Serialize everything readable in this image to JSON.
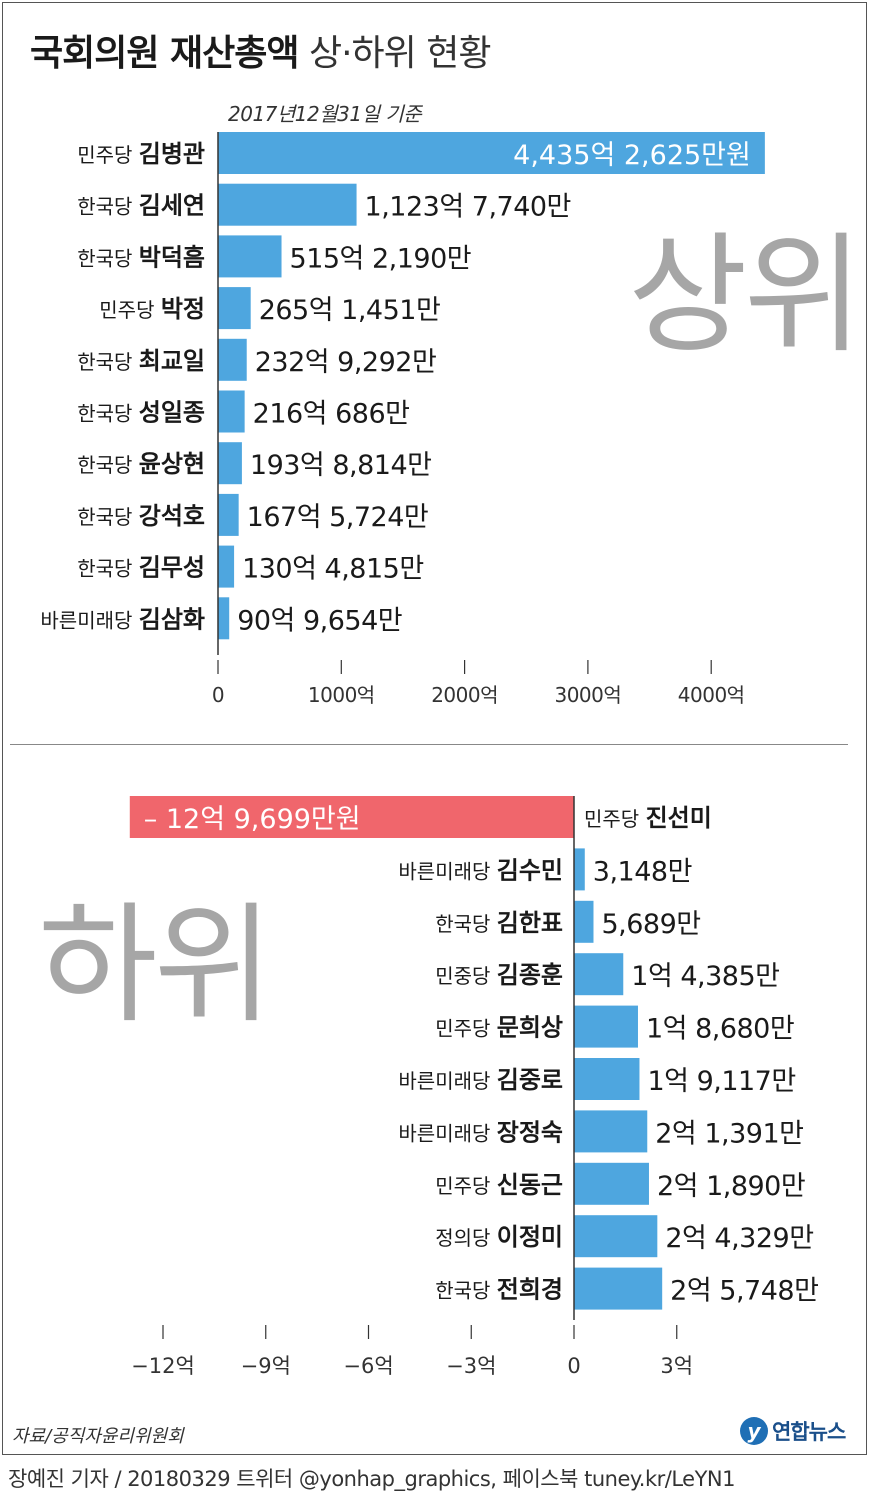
{
  "title": {
    "bold": "국회의원 재산총액",
    "rest": "상·하위 현황"
  },
  "subtitle": "2017년12월31일 기준",
  "labels": {
    "top_word": "상위",
    "bottom_word": "하위"
  },
  "source": "자료/공직자윤리위원회",
  "credit": "장예진 기자 / 20180329 트위터 @yonhap_graphics, 페이스북 tuney.kr/LeYN1",
  "logo": {
    "mark": "y",
    "text": "연합뉴스"
  },
  "colors": {
    "bar": "#4ea6df",
    "negative_bar": "#f0666c",
    "axis": "#333333",
    "big_word": "#a6a6a6"
  },
  "chart_data": [
    {
      "type": "bar",
      "orientation": "horizontal",
      "group": "상위",
      "unit": "억원",
      "xlim": [
        0,
        4435
      ],
      "xticks": [
        0,
        1000,
        2000,
        3000,
        4000
      ],
      "xtick_labels": [
        "0",
        "1000억",
        "2000억",
        "3000억",
        "4000억"
      ],
      "rows": [
        {
          "party": "민주당",
          "name": "김병관",
          "value": 4435.2625,
          "label": "4,435억 2,625만원"
        },
        {
          "party": "한국당",
          "name": "김세연",
          "value": 1123.774,
          "label": "1,123억 7,740만"
        },
        {
          "party": "한국당",
          "name": "박덕흠",
          "value": 515.219,
          "label": "515억 2,190만"
        },
        {
          "party": "민주당",
          "name": "박정",
          "value": 265.1451,
          "label": "265억 1,451만"
        },
        {
          "party": "한국당",
          "name": "최교일",
          "value": 232.9292,
          "label": "232억 9,292만"
        },
        {
          "party": "한국당",
          "name": "성일종",
          "value": 216.0686,
          "label": "216억 686만"
        },
        {
          "party": "한국당",
          "name": "윤상현",
          "value": 193.8814,
          "label": "193억 8,814만"
        },
        {
          "party": "한국당",
          "name": "강석호",
          "value": 167.5724,
          "label": "167억 5,724만"
        },
        {
          "party": "한국당",
          "name": "김무성",
          "value": 130.4815,
          "label": "130억 4,815만"
        },
        {
          "party": "바른미래당",
          "name": "김삼화",
          "value": 90.9654,
          "label": "90억 9,654만"
        }
      ]
    },
    {
      "type": "bar",
      "orientation": "horizontal",
      "group": "하위",
      "unit": "억원",
      "xlim": [
        -12.9699,
        3
      ],
      "xticks": [
        -12,
        -9,
        -6,
        -3,
        0,
        3
      ],
      "xtick_labels": [
        "−12억",
        "−9억",
        "−6억",
        "−3억",
        "0",
        "3억"
      ],
      "rows": [
        {
          "party": "민주당",
          "name": "진선미",
          "value": -12.9699,
          "label": "– 12억 9,699만원"
        },
        {
          "party": "바른미래당",
          "name": "김수민",
          "value": 0.3148,
          "label": "3,148만"
        },
        {
          "party": "한국당",
          "name": "김한표",
          "value": 0.5689,
          "label": "5,689만"
        },
        {
          "party": "민중당",
          "name": "김종훈",
          "value": 1.4385,
          "label": "1억 4,385만"
        },
        {
          "party": "민주당",
          "name": "문희상",
          "value": 1.868,
          "label": "1억 8,680만"
        },
        {
          "party": "바른미래당",
          "name": "김중로",
          "value": 1.9117,
          "label": "1억 9,117만"
        },
        {
          "party": "바른미래당",
          "name": "장정숙",
          "value": 2.1391,
          "label": "2억 1,391만"
        },
        {
          "party": "민주당",
          "name": "신동근",
          "value": 2.189,
          "label": "2억 1,890만"
        },
        {
          "party": "정의당",
          "name": "이정미",
          "value": 2.4329,
          "label": "2억 4,329만"
        },
        {
          "party": "한국당",
          "name": "전희경",
          "value": 2.5748,
          "label": "2억 5,748만"
        }
      ]
    }
  ]
}
